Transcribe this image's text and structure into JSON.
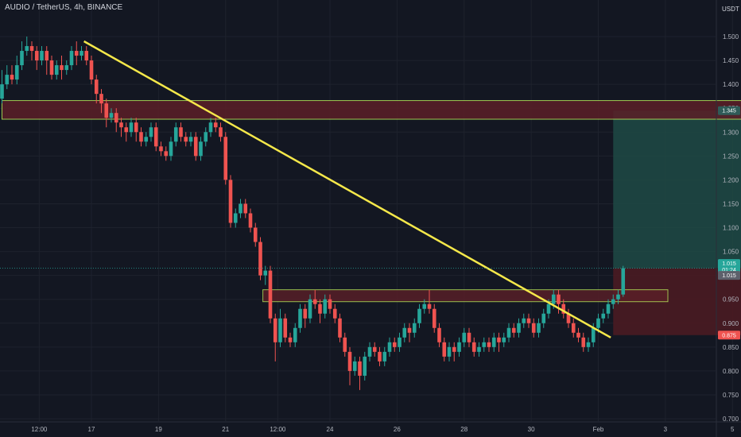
{
  "header": {
    "pair_title": "AUDIO / TetherUS, 4h, BINANCE",
    "quote_currency": "USDT"
  },
  "colors": {
    "background": "#131722",
    "up": "#26a69a",
    "down": "#ef5350",
    "trendline": "#f5e84a",
    "zone_border": "#b7e85a",
    "zone_fill": "#5b1f27",
    "target_fill": "#1e4a45",
    "stop_fill": "#4a1b22",
    "price_tag": "#26a69a",
    "stop_tag": "#ef5350",
    "target_tag": "#2f5b58",
    "last_tag": "#5d606b"
  },
  "chart_data": {
    "type": "candlestick",
    "title": "AUDIO / TetherUS, 4h, BINANCE",
    "ylabel": "USDT",
    "ylim": [
      0.7,
      1.52
    ],
    "xlim": [
      0,
      146
    ],
    "y_ticks": [
      "1.500",
      "1.450",
      "1.400",
      "1.350",
      "1.300",
      "1.250",
      "1.200",
      "1.150",
      "1.100",
      "1.050",
      "1.000",
      "0.950",
      "0.900",
      "0.850",
      "0.800",
      "0.750",
      "0.700"
    ],
    "x_tick_labels": [
      {
        "label": "12:00",
        "x": 7.5
      },
      {
        "label": "17",
        "x": 18
      },
      {
        "label": "19",
        "x": 31.5
      },
      {
        "label": "21",
        "x": 45
      },
      {
        "label": "12:00",
        "x": 55.5
      },
      {
        "label": "24",
        "x": 66
      },
      {
        "label": "26",
        "x": 79.5
      },
      {
        "label": "28",
        "x": 93
      },
      {
        "label": "30",
        "x": 106.5
      },
      {
        "label": "Feb",
        "x": 120
      },
      {
        "label": "3",
        "x": 133.5
      },
      {
        "label": "5",
        "x": 147
      }
    ],
    "candles": [
      [
        1.37,
        1.4,
        1.43,
        1.36
      ],
      [
        1.4,
        1.42,
        1.44,
        1.39
      ],
      [
        1.42,
        1.41,
        1.44,
        1.4
      ],
      [
        1.41,
        1.44,
        1.46,
        1.4
      ],
      [
        1.44,
        1.47,
        1.49,
        1.43
      ],
      [
        1.47,
        1.48,
        1.5,
        1.46
      ],
      [
        1.48,
        1.47,
        1.49,
        1.45
      ],
      [
        1.47,
        1.45,
        1.48,
        1.43
      ],
      [
        1.45,
        1.47,
        1.48,
        1.44
      ],
      [
        1.47,
        1.45,
        1.48,
        1.42
      ],
      [
        1.45,
        1.42,
        1.46,
        1.41
      ],
      [
        1.42,
        1.44,
        1.45,
        1.41
      ],
      [
        1.44,
        1.43,
        1.46,
        1.41
      ],
      [
        1.43,
        1.44,
        1.45,
        1.42
      ],
      [
        1.44,
        1.47,
        1.48,
        1.43
      ],
      [
        1.47,
        1.46,
        1.49,
        1.44
      ],
      [
        1.46,
        1.47,
        1.48,
        1.45
      ],
      [
        1.47,
        1.45,
        1.48,
        1.44
      ],
      [
        1.45,
        1.41,
        1.46,
        1.4
      ],
      [
        1.41,
        1.38,
        1.42,
        1.36
      ],
      [
        1.38,
        1.36,
        1.39,
        1.34
      ],
      [
        1.36,
        1.33,
        1.37,
        1.31
      ],
      [
        1.33,
        1.34,
        1.35,
        1.32
      ],
      [
        1.34,
        1.32,
        1.35,
        1.3
      ],
      [
        1.32,
        1.31,
        1.33,
        1.29
      ],
      [
        1.31,
        1.3,
        1.32,
        1.28
      ],
      [
        1.3,
        1.32,
        1.33,
        1.29
      ],
      [
        1.32,
        1.3,
        1.33,
        1.28
      ],
      [
        1.3,
        1.28,
        1.31,
        1.27
      ],
      [
        1.28,
        1.29,
        1.3,
        1.27
      ],
      [
        1.29,
        1.31,
        1.32,
        1.28
      ],
      [
        1.31,
        1.27,
        1.32,
        1.26
      ],
      [
        1.27,
        1.26,
        1.28,
        1.25
      ],
      [
        1.26,
        1.25,
        1.27,
        1.24
      ],
      [
        1.25,
        1.28,
        1.29,
        1.24
      ],
      [
        1.28,
        1.31,
        1.32,
        1.27
      ],
      [
        1.31,
        1.29,
        1.32,
        1.28
      ],
      [
        1.29,
        1.28,
        1.3,
        1.27
      ],
      [
        1.28,
        1.29,
        1.3,
        1.27
      ],
      [
        1.29,
        1.25,
        1.3,
        1.24
      ],
      [
        1.25,
        1.28,
        1.29,
        1.24
      ],
      [
        1.28,
        1.3,
        1.31,
        1.27
      ],
      [
        1.3,
        1.32,
        1.33,
        1.29
      ],
      [
        1.32,
        1.31,
        1.33,
        1.3
      ],
      [
        1.31,
        1.29,
        1.32,
        1.28
      ],
      [
        1.29,
        1.2,
        1.3,
        1.19
      ],
      [
        1.2,
        1.11,
        1.21,
        1.1
      ],
      [
        1.11,
        1.13,
        1.14,
        1.1
      ],
      [
        1.13,
        1.15,
        1.16,
        1.12
      ],
      [
        1.15,
        1.13,
        1.16,
        1.12
      ],
      [
        1.13,
        1.1,
        1.14,
        1.09
      ],
      [
        1.1,
        1.07,
        1.11,
        1.06
      ],
      [
        1.07,
        1.0,
        1.08,
        0.99
      ],
      [
        1.0,
        1.01,
        1.02,
        0.98
      ],
      [
        1.01,
        0.91,
        1.02,
        0.9
      ],
      [
        0.91,
        0.86,
        0.92,
        0.82
      ],
      [
        0.86,
        0.91,
        0.93,
        0.85
      ],
      [
        0.91,
        0.87,
        0.92,
        0.86
      ],
      [
        0.87,
        0.86,
        0.88,
        0.85
      ],
      [
        0.86,
        0.89,
        0.9,
        0.85
      ],
      [
        0.89,
        0.93,
        0.94,
        0.88
      ],
      [
        0.93,
        0.91,
        0.94,
        0.89
      ],
      [
        0.91,
        0.95,
        0.96,
        0.9
      ],
      [
        0.95,
        0.94,
        0.97,
        0.93
      ],
      [
        0.94,
        0.92,
        0.95,
        0.9
      ],
      [
        0.92,
        0.95,
        0.96,
        0.91
      ],
      [
        0.95,
        0.93,
        0.96,
        0.92
      ],
      [
        0.93,
        0.91,
        0.94,
        0.9
      ],
      [
        0.91,
        0.87,
        0.92,
        0.86
      ],
      [
        0.87,
        0.84,
        0.88,
        0.83
      ],
      [
        0.84,
        0.8,
        0.85,
        0.77
      ],
      [
        0.8,
        0.82,
        0.83,
        0.79
      ],
      [
        0.82,
        0.79,
        0.83,
        0.76
      ],
      [
        0.79,
        0.83,
        0.84,
        0.78
      ],
      [
        0.83,
        0.85,
        0.86,
        0.82
      ],
      [
        0.85,
        0.84,
        0.86,
        0.83
      ],
      [
        0.84,
        0.82,
        0.85,
        0.81
      ],
      [
        0.82,
        0.84,
        0.85,
        0.81
      ],
      [
        0.84,
        0.86,
        0.87,
        0.83
      ],
      [
        0.86,
        0.85,
        0.87,
        0.84
      ],
      [
        0.85,
        0.87,
        0.88,
        0.84
      ],
      [
        0.87,
        0.89,
        0.9,
        0.86
      ],
      [
        0.89,
        0.88,
        0.9,
        0.86
      ],
      [
        0.88,
        0.9,
        0.91,
        0.87
      ],
      [
        0.9,
        0.93,
        0.94,
        0.89
      ],
      [
        0.93,
        0.94,
        0.95,
        0.92
      ],
      [
        0.94,
        0.93,
        0.97,
        0.92
      ],
      [
        0.93,
        0.89,
        0.94,
        0.88
      ],
      [
        0.89,
        0.86,
        0.9,
        0.85
      ],
      [
        0.86,
        0.83,
        0.87,
        0.82
      ],
      [
        0.83,
        0.85,
        0.86,
        0.82
      ],
      [
        0.85,
        0.84,
        0.86,
        0.82
      ],
      [
        0.84,
        0.86,
        0.87,
        0.83
      ],
      [
        0.86,
        0.88,
        0.89,
        0.85
      ],
      [
        0.88,
        0.86,
        0.89,
        0.85
      ],
      [
        0.86,
        0.84,
        0.87,
        0.83
      ],
      [
        0.84,
        0.85,
        0.86,
        0.83
      ],
      [
        0.85,
        0.86,
        0.87,
        0.84
      ],
      [
        0.86,
        0.85,
        0.87,
        0.84
      ],
      [
        0.85,
        0.87,
        0.88,
        0.84
      ],
      [
        0.87,
        0.86,
        0.88,
        0.84
      ],
      [
        0.86,
        0.87,
        0.88,
        0.85
      ],
      [
        0.87,
        0.89,
        0.9,
        0.86
      ],
      [
        0.89,
        0.88,
        0.9,
        0.87
      ],
      [
        0.88,
        0.9,
        0.91,
        0.87
      ],
      [
        0.9,
        0.91,
        0.92,
        0.89
      ],
      [
        0.91,
        0.9,
        0.92,
        0.89
      ],
      [
        0.9,
        0.88,
        0.91,
        0.87
      ],
      [
        0.88,
        0.9,
        0.91,
        0.87
      ],
      [
        0.9,
        0.92,
        0.93,
        0.89
      ],
      [
        0.92,
        0.94,
        0.95,
        0.91
      ],
      [
        0.94,
        0.96,
        0.97,
        0.93
      ],
      [
        0.96,
        0.94,
        0.97,
        0.92
      ],
      [
        0.94,
        0.92,
        0.95,
        0.91
      ],
      [
        0.92,
        0.9,
        0.93,
        0.89
      ],
      [
        0.9,
        0.88,
        0.91,
        0.87
      ],
      [
        0.88,
        0.87,
        0.89,
        0.86
      ],
      [
        0.87,
        0.85,
        0.88,
        0.84
      ],
      [
        0.85,
        0.86,
        0.87,
        0.84
      ],
      [
        0.86,
        0.89,
        0.9,
        0.85
      ],
      [
        0.89,
        0.91,
        0.92,
        0.88
      ],
      [
        0.91,
        0.92,
        0.93,
        0.9
      ],
      [
        0.92,
        0.94,
        0.95,
        0.91
      ],
      [
        0.94,
        0.95,
        0.96,
        0.93
      ],
      [
        0.95,
        0.96,
        0.97,
        0.94
      ],
      [
        0.96,
        1.015,
        1.02,
        0.955
      ]
    ],
    "trendline": {
      "x1": 16.5,
      "y1": 1.49,
      "x2": 122.5,
      "y2": 0.87
    },
    "resistance_zone": {
      "x1": 0,
      "x2": 150.5,
      "y_top": 1.366,
      "y_bottom": 1.327
    },
    "breakout_zone": {
      "x1": 52.5,
      "x2": 134,
      "y_top": 0.97,
      "y_bottom": 0.945
    },
    "position": {
      "x1": 123,
      "x2": 149,
      "entry": 1.015,
      "target": 1.345,
      "stop": 0.875
    },
    "price_tags": [
      {
        "label": "1.345",
        "value": 1.345,
        "kind": "target"
      },
      {
        "label": "1.015",
        "value": 1.025,
        "kind": "price"
      },
      {
        "label": "01:24",
        "value": 1.012,
        "kind": "price"
      },
      {
        "label": "1.015",
        "value": 1.0,
        "kind": "last"
      },
      {
        "label": "0.875",
        "value": 0.875,
        "kind": "stop"
      }
    ]
  }
}
